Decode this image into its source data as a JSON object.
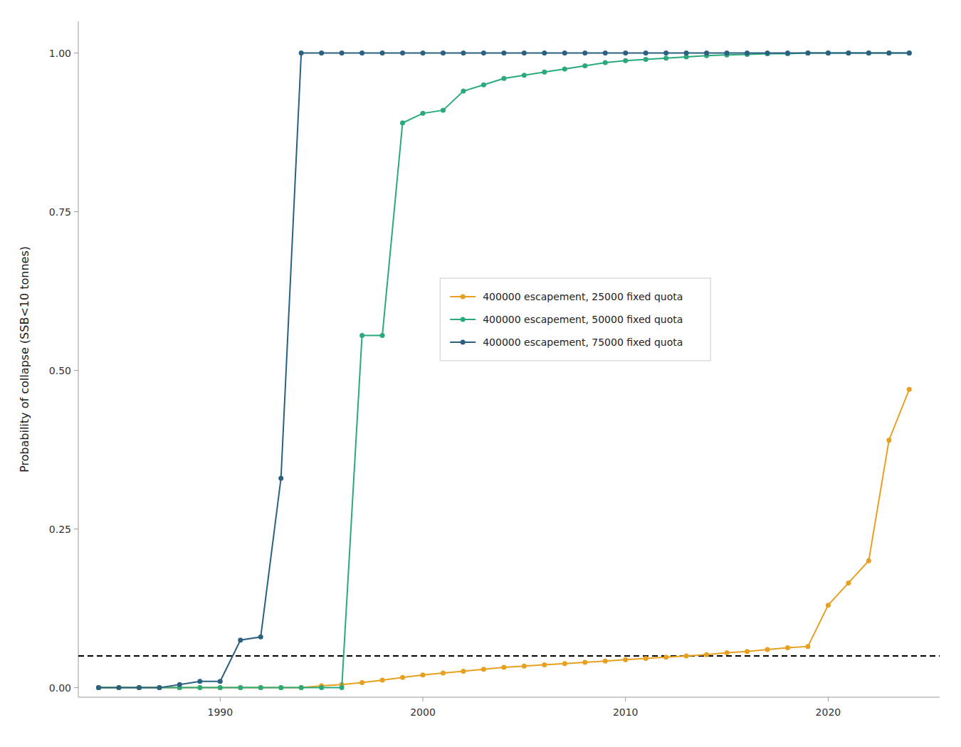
{
  "chart_data": {
    "type": "line",
    "y_label": "Probability of collapse (SSB<10 tonnes)",
    "x": [
      1984,
      1985,
      1986,
      1987,
      1988,
      1989,
      1990,
      1991,
      1992,
      1993,
      1994,
      1995,
      1996,
      1997,
      1998,
      1999,
      2000,
      2001,
      2002,
      2003,
      2004,
      2005,
      2006,
      2007,
      2008,
      2009,
      2010,
      2011,
      2012,
      2013,
      2014,
      2015,
      2016,
      2017,
      2018,
      2019,
      2020,
      2021,
      2022,
      2023,
      2024
    ],
    "series": [
      {
        "name": "400000 escapement, 25000 fixed quota",
        "color": "#E8A020",
        "values": [
          0.0,
          0.0,
          0.0,
          0.0,
          0.0,
          0.0,
          0.0,
          0.0,
          0.0,
          0.0,
          0.0,
          0.003,
          0.005,
          0.008,
          0.012,
          0.016,
          0.02,
          0.023,
          0.026,
          0.029,
          0.032,
          0.034,
          0.036,
          0.038,
          0.04,
          0.042,
          0.044,
          0.046,
          0.048,
          0.05,
          0.052,
          0.055,
          0.057,
          0.06,
          0.063,
          0.065,
          0.13,
          0.165,
          0.2,
          0.39,
          0.47
        ]
      },
      {
        "name": "400000 escapement, 50000 fixed quota",
        "color": "#2AAA7A",
        "values": [
          0.0,
          0.0,
          0.0,
          0.0,
          0.0,
          0.0,
          0.0,
          0.0,
          0.0,
          0.0,
          0.0,
          0.0,
          0.0,
          0.555,
          0.555,
          0.89,
          0.905,
          0.91,
          0.94,
          0.95,
          0.96,
          0.965,
          0.97,
          0.975,
          0.98,
          0.985,
          0.988,
          0.99,
          0.992,
          0.994,
          0.996,
          0.997,
          0.998,
          0.999,
          0.999,
          1.0,
          1.0,
          1.0,
          1.0,
          1.0,
          1.0
        ]
      },
      {
        "name": "400000 escapement, 75000 fixed quota",
        "color": "#2B6080",
        "values": [
          0.0,
          0.0,
          0.0,
          0.0,
          0.005,
          0.01,
          0.01,
          0.075,
          0.08,
          0.33,
          1.0,
          1.0,
          1.0,
          1.0,
          1.0,
          1.0,
          1.0,
          1.0,
          1.0,
          1.0,
          1.0,
          1.0,
          1.0,
          1.0,
          1.0,
          1.0,
          1.0,
          1.0,
          1.0,
          1.0,
          1.0,
          1.0,
          1.0,
          1.0,
          1.0,
          1.0,
          1.0,
          1.0,
          1.0,
          1.0,
          1.0
        ]
      }
    ],
    "reference_line": {
      "value": 0.05,
      "line_style": "dashed",
      "color": "#000000"
    },
    "xlim": [
      1983,
      2025.5
    ],
    "ylim": [
      -0.015,
      1.05
    ],
    "xticks": [
      1990,
      2000,
      2010,
      2020
    ],
    "yticks": [
      {
        "value": 0.0,
        "label": "0.00"
      },
      0.25,
      {
        "value": 0.5,
        "label": "0.50"
      },
      0.75,
      {
        "value": 1.0,
        "label": "1.00"
      }
    ],
    "marker": "circle",
    "line_style": "solid",
    "grid": false,
    "legend": "center"
  }
}
